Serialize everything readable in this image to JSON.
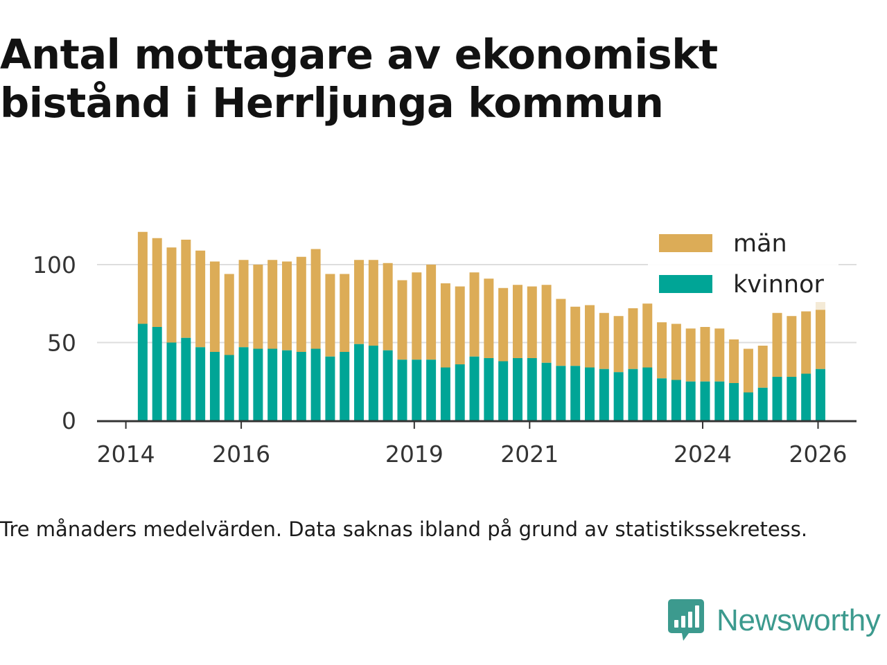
{
  "title": "Antal mottagare av ekonomiskt bistånd i Herrljunga kommun",
  "note": "Tre månaders medelvärden. Data saknas ibland på grund av statistikssekretess.",
  "brand": {
    "name": "Newsworthy",
    "icon": "newsworthy-logo-icon",
    "color": "#3c9a8e"
  },
  "chart_data": {
    "type": "bar",
    "stacked": true,
    "title": "Antal mottagare av ekonomiskt bistånd i Herrljunga kommun",
    "xlabel": "",
    "ylabel": "",
    "ylim": [
      0,
      125
    ],
    "yticks": [
      0,
      50,
      100
    ],
    "xlim": [
      "2013-07",
      "2026-09"
    ],
    "xticks": [
      "2014",
      "2016",
      "2019",
      "2021",
      "2024",
      "2026"
    ],
    "grid": "horizontal",
    "legend_position": "top-right",
    "colors": {
      "män": "#dcac57",
      "kvinnor": "#00a596"
    },
    "x": [
      "2014-04",
      "2014-07",
      "2014-10",
      "2015-01",
      "2015-04",
      "2015-07",
      "2015-10",
      "2016-01",
      "2016-04",
      "2016-07",
      "2016-10",
      "2017-01",
      "2017-04",
      "2017-07",
      "2017-10",
      "2018-01",
      "2018-04",
      "2018-07",
      "2018-10",
      "2019-01",
      "2019-04",
      "2019-07",
      "2019-10",
      "2020-01",
      "2020-04",
      "2020-07",
      "2020-10",
      "2021-01",
      "2021-04",
      "2021-07",
      "2021-10",
      "2022-01",
      "2022-04",
      "2022-07",
      "2022-10",
      "2023-01",
      "2023-04",
      "2023-07",
      "2023-10",
      "2024-01",
      "2024-04",
      "2024-07",
      "2024-10",
      "2025-01",
      "2025-04",
      "2025-07",
      "2025-10",
      "2026-01"
    ],
    "series": [
      {
        "name": "kvinnor",
        "values": [
          62,
          60,
          50,
          53,
          47,
          44,
          42,
          47,
          46,
          46,
          45,
          44,
          46,
          41,
          44,
          49,
          48,
          45,
          39,
          39,
          39,
          34,
          36,
          41,
          40,
          38,
          40,
          40,
          37,
          35,
          35,
          34,
          33,
          31,
          33,
          34,
          27,
          26,
          25,
          25,
          25,
          24,
          18,
          21,
          28,
          28,
          30,
          33
        ]
      },
      {
        "name": "män",
        "values": [
          59,
          57,
          61,
          63,
          62,
          58,
          52,
          56,
          54,
          57,
          57,
          61,
          64,
          53,
          50,
          54,
          55,
          56,
          51,
          56,
          61,
          54,
          50,
          54,
          51,
          47,
          47,
          46,
          50,
          43,
          38,
          40,
          36,
          36,
          39,
          41,
          36,
          36,
          34,
          35,
          34,
          28,
          28,
          27,
          41,
          39,
          40,
          38
        ]
      }
    ],
    "incomplete": {
      "x": "2026-01",
      "total": 76
    }
  }
}
